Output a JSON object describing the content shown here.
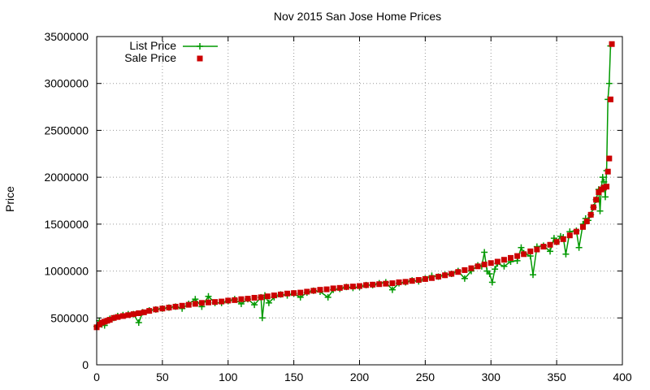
{
  "chart_data": {
    "type": "line",
    "title": "Nov 2015 San Jose Home Prices",
    "xlabel": "",
    "ylabel": "Price",
    "xlim": [
      0,
      400
    ],
    "ylim": [
      0,
      3500000
    ],
    "xticks": [
      0,
      50,
      100,
      150,
      200,
      250,
      300,
      350,
      400
    ],
    "yticks": [
      0,
      500000,
      1000000,
      1500000,
      2000000,
      2500000,
      3000000,
      3500000
    ],
    "grid": true,
    "legend_position": "top-left",
    "series": [
      {
        "name": "List Price",
        "style": "line+plus",
        "color": "#009900",
        "points": [
          [
            0,
            410000
          ],
          [
            2,
            470000
          ],
          [
            4,
            430000
          ],
          [
            6,
            420000
          ],
          [
            8,
            470000
          ],
          [
            10,
            490000
          ],
          [
            13,
            500000
          ],
          [
            16,
            520000
          ],
          [
            20,
            530000
          ],
          [
            24,
            540000
          ],
          [
            28,
            540000
          ],
          [
            32,
            450000
          ],
          [
            35,
            560000
          ],
          [
            40,
            580000
          ],
          [
            45,
            590000
          ],
          [
            50,
            600000
          ],
          [
            55,
            610000
          ],
          [
            60,
            620000
          ],
          [
            65,
            600000
          ],
          [
            70,
            650000
          ],
          [
            75,
            700000
          ],
          [
            80,
            620000
          ],
          [
            85,
            730000
          ],
          [
            90,
            660000
          ],
          [
            95,
            660000
          ],
          [
            100,
            680000
          ],
          [
            105,
            700000
          ],
          [
            110,
            650000
          ],
          [
            115,
            700000
          ],
          [
            120,
            640000
          ],
          [
            125,
            720000
          ],
          [
            126,
            500000
          ],
          [
            128,
            740000
          ],
          [
            131,
            660000
          ],
          [
            135,
            720000
          ],
          [
            140,
            750000
          ],
          [
            145,
            740000
          ],
          [
            150,
            760000
          ],
          [
            155,
            720000
          ],
          [
            160,
            770000
          ],
          [
            165,
            790000
          ],
          [
            170,
            780000
          ],
          [
            176,
            720000
          ],
          [
            180,
            800000
          ],
          [
            185,
            810000
          ],
          [
            190,
            830000
          ],
          [
            195,
            820000
          ],
          [
            200,
            830000
          ],
          [
            205,
            850000
          ],
          [
            210,
            850000
          ],
          [
            215,
            870000
          ],
          [
            220,
            880000
          ],
          [
            225,
            800000
          ],
          [
            230,
            870000
          ],
          [
            235,
            880000
          ],
          [
            240,
            900000
          ],
          [
            245,
            890000
          ],
          [
            250,
            920000
          ],
          [
            255,
            950000
          ],
          [
            260,
            940000
          ],
          [
            265,
            960000
          ],
          [
            270,
            970000
          ],
          [
            275,
            1000000
          ],
          [
            280,
            920000
          ],
          [
            285,
            1000000
          ],
          [
            290,
            1060000
          ],
          [
            293,
            1050000
          ],
          [
            295,
            1200000
          ],
          [
            297,
            1000000
          ],
          [
            299,
            970000
          ],
          [
            301,
            880000
          ],
          [
            303,
            1020000
          ],
          [
            305,
            1080000
          ],
          [
            310,
            1050000
          ],
          [
            315,
            1100000
          ],
          [
            320,
            1110000
          ],
          [
            323,
            1250000
          ],
          [
            325,
            1190000
          ],
          [
            330,
            1160000
          ],
          [
            332,
            960000
          ],
          [
            335,
            1260000
          ],
          [
            340,
            1270000
          ],
          [
            345,
            1210000
          ],
          [
            348,
            1350000
          ],
          [
            350,
            1310000
          ],
          [
            353,
            1370000
          ],
          [
            355,
            1360000
          ],
          [
            357,
            1180000
          ],
          [
            360,
            1420000
          ],
          [
            365,
            1430000
          ],
          [
            367,
            1250000
          ],
          [
            370,
            1500000
          ],
          [
            372,
            1560000
          ],
          [
            374,
            1540000
          ],
          [
            376,
            1600000
          ],
          [
            378,
            1680000
          ],
          [
            380,
            1760000
          ],
          [
            382,
            1870000
          ],
          [
            383,
            1640000
          ],
          [
            384,
            1880000
          ],
          [
            385,
            2000000
          ],
          [
            386,
            1950000
          ],
          [
            387,
            1790000
          ],
          [
            388,
            2070000
          ],
          [
            389,
            2830000
          ],
          [
            390,
            3000000
          ],
          [
            391,
            3400000
          ]
        ]
      },
      {
        "name": "Sale Price",
        "style": "square",
        "color": "#cc0000",
        "points": [
          [
            0,
            400000
          ],
          [
            2,
            430000
          ],
          [
            4,
            450000
          ],
          [
            6,
            460000
          ],
          [
            8,
            470000
          ],
          [
            10,
            480000
          ],
          [
            13,
            500000
          ],
          [
            16,
            510000
          ],
          [
            20,
            520000
          ],
          [
            24,
            530000
          ],
          [
            28,
            540000
          ],
          [
            32,
            550000
          ],
          [
            36,
            560000
          ],
          [
            40,
            575000
          ],
          [
            45,
            590000
          ],
          [
            50,
            600000
          ],
          [
            55,
            610000
          ],
          [
            60,
            620000
          ],
          [
            65,
            630000
          ],
          [
            70,
            640000
          ],
          [
            75,
            650000
          ],
          [
            80,
            660000
          ],
          [
            85,
            665000
          ],
          [
            90,
            670000
          ],
          [
            95,
            675000
          ],
          [
            100,
            685000
          ],
          [
            105,
            690000
          ],
          [
            110,
            700000
          ],
          [
            115,
            705000
          ],
          [
            120,
            715000
          ],
          [
            125,
            720000
          ],
          [
            130,
            730000
          ],
          [
            135,
            740000
          ],
          [
            140,
            750000
          ],
          [
            145,
            760000
          ],
          [
            150,
            765000
          ],
          [
            155,
            770000
          ],
          [
            160,
            780000
          ],
          [
            165,
            790000
          ],
          [
            170,
            800000
          ],
          [
            175,
            805000
          ],
          [
            180,
            815000
          ],
          [
            185,
            820000
          ],
          [
            190,
            830000
          ],
          [
            195,
            835000
          ],
          [
            200,
            840000
          ],
          [
            205,
            850000
          ],
          [
            210,
            855000
          ],
          [
            215,
            860000
          ],
          [
            220,
            865000
          ],
          [
            225,
            870000
          ],
          [
            230,
            880000
          ],
          [
            235,
            885000
          ],
          [
            240,
            895000
          ],
          [
            245,
            905000
          ],
          [
            250,
            915000
          ],
          [
            255,
            925000
          ],
          [
            260,
            940000
          ],
          [
            265,
            955000
          ],
          [
            270,
            970000
          ],
          [
            275,
            990000
          ],
          [
            280,
            1010000
          ],
          [
            285,
            1030000
          ],
          [
            290,
            1050000
          ],
          [
            295,
            1070000
          ],
          [
            300,
            1085000
          ],
          [
            305,
            1100000
          ],
          [
            310,
            1120000
          ],
          [
            315,
            1140000
          ],
          [
            320,
            1160000
          ],
          [
            325,
            1180000
          ],
          [
            330,
            1210000
          ],
          [
            335,
            1230000
          ],
          [
            340,
            1260000
          ],
          [
            345,
            1280000
          ],
          [
            350,
            1310000
          ],
          [
            355,
            1340000
          ],
          [
            360,
            1380000
          ],
          [
            365,
            1420000
          ],
          [
            370,
            1470000
          ],
          [
            373,
            1530000
          ],
          [
            376,
            1600000
          ],
          [
            378,
            1680000
          ],
          [
            380,
            1760000
          ],
          [
            382,
            1840000
          ],
          [
            384,
            1870000
          ],
          [
            386,
            1890000
          ],
          [
            388,
            1900000
          ],
          [
            389,
            2060000
          ],
          [
            390,
            2200000
          ],
          [
            391,
            2830000
          ],
          [
            392,
            3420000
          ]
        ]
      }
    ]
  }
}
